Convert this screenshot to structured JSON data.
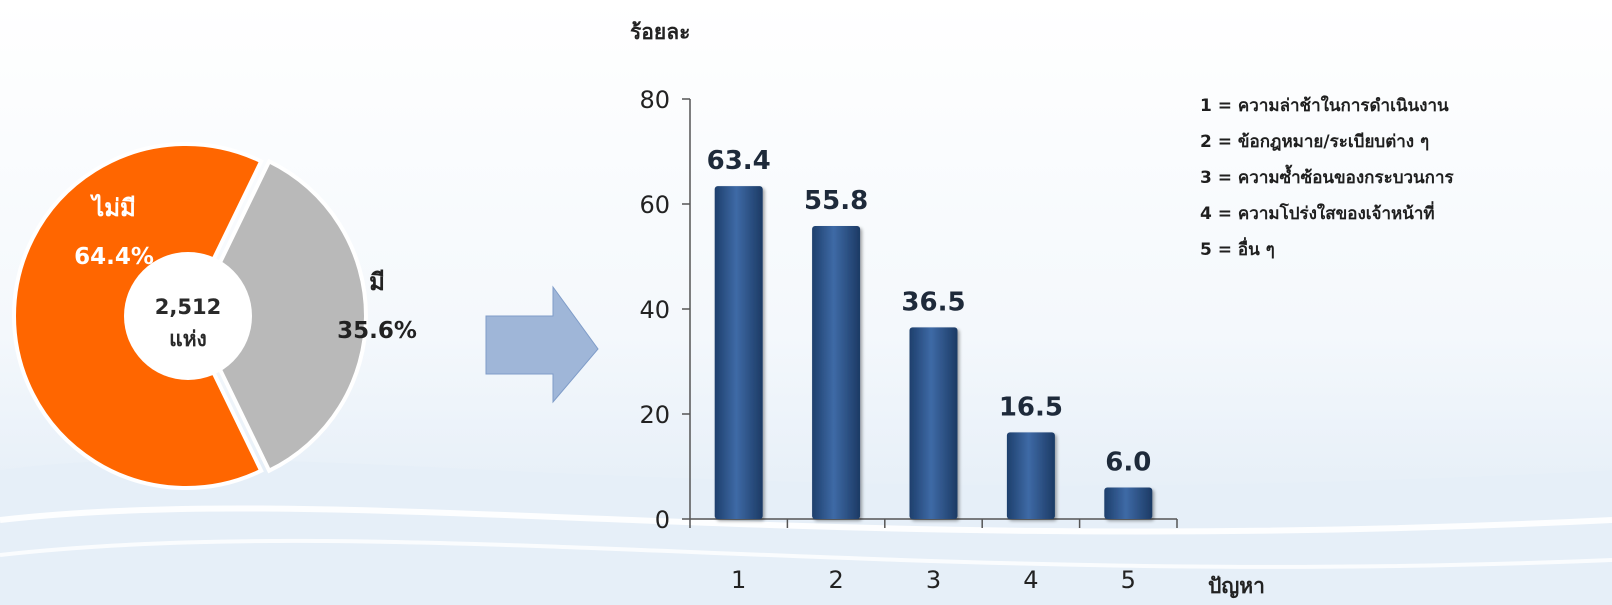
{
  "colors": {
    "no": "#ff6600",
    "yes": "#b9b9b9",
    "bar": "#2f5b94",
    "arrow": "#9fb6d8"
  },
  "chart_data": [
    {
      "type": "pie",
      "center_label": [
        "2,512",
        "แห่ง"
      ],
      "slices": [
        {
          "label": "ไม่มี",
          "value": 64.4,
          "value_label": "64.4%",
          "color": "#ff6600"
        },
        {
          "label": "มี",
          "value": 35.6,
          "value_label": "35.6%",
          "color": "#b9b9b9"
        }
      ]
    },
    {
      "type": "bar",
      "ylabel": "ร้อยละ",
      "xlabel": "ปัญหา",
      "categories": [
        "1",
        "2",
        "3",
        "4",
        "5"
      ],
      "values": [
        63.4,
        55.8,
        36.5,
        16.5,
        6.0
      ],
      "value_labels": [
        "63.4",
        "55.8",
        "36.5",
        "16.5",
        "6.0"
      ],
      "ylim": [
        0,
        80
      ],
      "yticks": [
        0,
        20,
        40,
        60,
        80
      ],
      "grid": false,
      "legend": [
        "1 = ความล่าช้าในการดำเนินงาน",
        "2 = ข้อกฎหมาย/ระเบียบต่าง ๆ",
        "3 = ความซ้ำซ้อนของกระบวนการ",
        "4 = ความโปร่งใสของเจ้าหน้าที่",
        "5 = อื่น ๆ"
      ]
    }
  ]
}
